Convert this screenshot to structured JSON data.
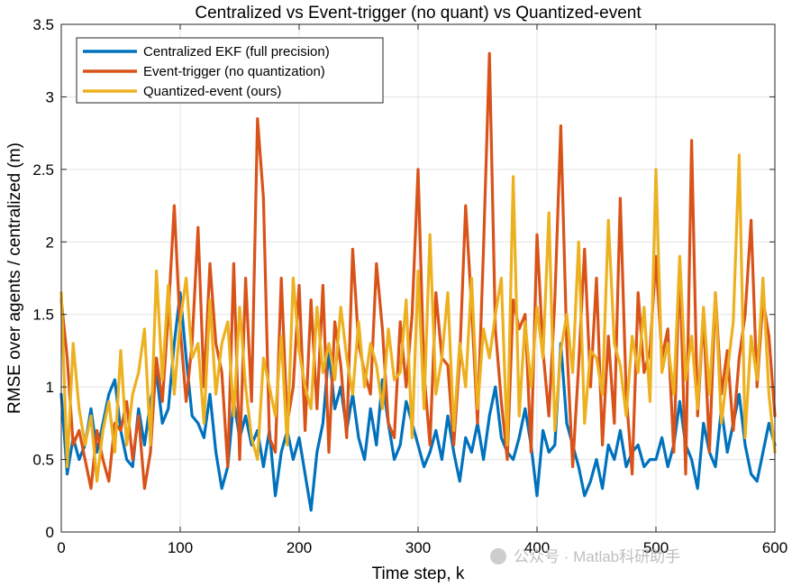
{
  "chart_data": {
    "type": "line",
    "title": "Centralized vs Event-trigger (no quant) vs Quantized-event",
    "xlabel": "Time step, k",
    "ylabel": "RMSE over agents / centralized (m)",
    "xlim": [
      0,
      600
    ],
    "ylim": [
      0,
      3.5
    ],
    "xticks": [
      0,
      100,
      200,
      300,
      400,
      500,
      600
    ],
    "yticks": [
      0,
      0.5,
      1,
      1.5,
      2,
      2.5,
      3,
      3.5
    ],
    "xtick_labels": [
      "0",
      "100",
      "200",
      "300",
      "400",
      "500",
      "600"
    ],
    "ytick_labels": [
      "0",
      "0.5",
      "1",
      "1.5",
      "2",
      "2.5",
      "3",
      "3.5"
    ],
    "grid": true,
    "legend_position": "top-left",
    "series": [
      {
        "name": "Centralized EKF (full precision)",
        "color": "#0072BD",
        "x": [
          0,
          5,
          10,
          15,
          20,
          25,
          30,
          35,
          40,
          45,
          50,
          55,
          60,
          65,
          70,
          75,
          80,
          85,
          90,
          95,
          100,
          105,
          110,
          115,
          120,
          125,
          130,
          135,
          140,
          145,
          150,
          155,
          160,
          165,
          170,
          175,
          180,
          185,
          190,
          195,
          200,
          205,
          210,
          215,
          220,
          225,
          230,
          235,
          240,
          245,
          250,
          255,
          260,
          265,
          270,
          275,
          280,
          285,
          290,
          295,
          300,
          305,
          310,
          315,
          320,
          325,
          330,
          335,
          340,
          345,
          350,
          355,
          360,
          365,
          370,
          375,
          380,
          385,
          390,
          395,
          400,
          405,
          410,
          415,
          420,
          425,
          430,
          435,
          440,
          445,
          450,
          455,
          460,
          465,
          470,
          475,
          480,
          485,
          490,
          495,
          500,
          505,
          510,
          515,
          520,
          525,
          530,
          535,
          540,
          545,
          550,
          555,
          560,
          565,
          570,
          575,
          580,
          585,
          590,
          595,
          600
        ],
        "values": [
          0.95,
          0.4,
          0.65,
          0.5,
          0.6,
          0.85,
          0.55,
          0.75,
          0.95,
          1.05,
          0.7,
          0.5,
          0.45,
          0.85,
          0.6,
          0.9,
          1.1,
          0.75,
          0.85,
          1.3,
          1.65,
          1.2,
          0.8,
          0.75,
          0.65,
          0.95,
          0.55,
          0.3,
          0.45,
          0.9,
          0.65,
          0.8,
          0.6,
          0.7,
          0.45,
          0.7,
          0.25,
          0.55,
          0.7,
          0.5,
          0.65,
          0.4,
          0.15,
          0.55,
          0.75,
          1.25,
          0.85,
          1.0,
          0.7,
          0.95,
          0.65,
          0.5,
          0.85,
          0.6,
          1.05,
          0.75,
          0.5,
          0.6,
          0.9,
          0.75,
          0.6,
          0.45,
          0.55,
          0.7,
          0.5,
          0.8,
          0.55,
          0.35,
          0.65,
          0.55,
          0.75,
          0.5,
          0.8,
          1.0,
          0.65,
          0.55,
          0.5,
          0.65,
          0.85,
          0.6,
          0.25,
          0.7,
          0.55,
          0.6,
          1.3,
          0.75,
          0.6,
          0.45,
          0.25,
          0.35,
          0.5,
          0.3,
          0.6,
          0.5,
          0.7,
          0.45,
          0.55,
          0.6,
          0.45,
          0.5,
          0.5,
          0.65,
          0.45,
          0.6,
          0.9,
          0.6,
          0.5,
          0.3,
          0.75,
          0.55,
          0.45,
          0.85,
          0.55,
          0.75,
          0.95,
          0.6,
          0.4,
          0.35,
          0.55,
          0.75,
          0.6
        ]
      },
      {
        "name": "Event-trigger (no quantization)",
        "color": "#D95319",
        "x": [
          0,
          5,
          10,
          15,
          20,
          25,
          30,
          35,
          40,
          45,
          50,
          55,
          60,
          65,
          70,
          75,
          80,
          85,
          90,
          95,
          100,
          105,
          110,
          115,
          120,
          125,
          130,
          135,
          140,
          145,
          150,
          155,
          160,
          165,
          170,
          175,
          180,
          185,
          190,
          195,
          200,
          205,
          210,
          215,
          220,
          225,
          230,
          235,
          240,
          245,
          250,
          255,
          260,
          265,
          270,
          275,
          280,
          285,
          290,
          295,
          300,
          305,
          310,
          315,
          320,
          325,
          330,
          335,
          340,
          345,
          350,
          355,
          360,
          365,
          370,
          375,
          380,
          385,
          390,
          395,
          400,
          405,
          410,
          415,
          420,
          425,
          430,
          435,
          440,
          445,
          450,
          455,
          460,
          465,
          470,
          475,
          480,
          485,
          490,
          495,
          500,
          505,
          510,
          515,
          520,
          525,
          530,
          535,
          540,
          545,
          550,
          555,
          560,
          565,
          570,
          575,
          580,
          585,
          590,
          595,
          600
        ],
        "values": [
          1.6,
          1.2,
          0.6,
          0.7,
          0.5,
          0.3,
          0.7,
          0.5,
          0.35,
          0.75,
          0.7,
          0.9,
          0.5,
          0.8,
          0.3,
          0.55,
          1.2,
          0.9,
          1.5,
          2.25,
          1.4,
          0.9,
          1.3,
          2.1,
          1.0,
          1.85,
          1.3,
          1.1,
          0.45,
          1.85,
          0.5,
          1.75,
          0.9,
          2.85,
          2.3,
          0.65,
          0.55,
          1.75,
          0.75,
          1.0,
          1.7,
          0.7,
          1.6,
          0.85,
          1.7,
          0.55,
          1.45,
          1.15,
          0.65,
          1.95,
          1.3,
          1.1,
          0.95,
          1.85,
          1.4,
          0.75,
          0.65,
          1.45,
          1.0,
          1.5,
          2.5,
          1.1,
          0.6,
          1.65,
          1.2,
          1.15,
          0.6,
          1.2,
          2.25,
          1.55,
          0.75,
          1.95,
          3.3,
          1.4,
          0.9,
          0.5,
          1.6,
          1.4,
          1.5,
          0.55,
          2.05,
          1.25,
          0.8,
          1.6,
          2.8,
          1.3,
          0.45,
          1.15,
          1.95,
          1.0,
          1.75,
          0.6,
          1.35,
          0.75,
          2.3,
          0.95,
          0.4,
          1.65,
          1.1,
          1.25,
          1.9,
          1.2,
          1.4,
          0.55,
          1.85,
          0.4,
          2.7,
          0.8,
          1.5,
          0.55,
          1.65,
          0.95,
          1.25,
          0.7,
          1.2,
          1.5,
          2.15,
          1.0,
          1.6,
          1.35,
          0.8
        ]
      },
      {
        "name": "Quantized-event (ours)",
        "color": "#EDB120",
        "x": [
          0,
          5,
          10,
          15,
          20,
          25,
          30,
          35,
          40,
          45,
          50,
          55,
          60,
          65,
          70,
          75,
          80,
          85,
          90,
          95,
          100,
          105,
          110,
          115,
          120,
          125,
          130,
          135,
          140,
          145,
          150,
          155,
          160,
          165,
          170,
          175,
          180,
          185,
          190,
          195,
          200,
          205,
          210,
          215,
          220,
          225,
          230,
          235,
          240,
          245,
          250,
          255,
          260,
          265,
          270,
          275,
          280,
          285,
          290,
          295,
          300,
          305,
          310,
          315,
          320,
          325,
          330,
          335,
          340,
          345,
          350,
          355,
          360,
          365,
          370,
          375,
          380,
          385,
          390,
          395,
          400,
          405,
          410,
          415,
          420,
          425,
          430,
          435,
          440,
          445,
          450,
          455,
          460,
          465,
          470,
          475,
          480,
          485,
          490,
          495,
          500,
          505,
          510,
          515,
          520,
          525,
          530,
          535,
          540,
          545,
          550,
          555,
          560,
          565,
          570,
          575,
          580,
          585,
          590,
          595,
          600
        ],
        "values": [
          1.65,
          0.45,
          1.3,
          0.85,
          0.6,
          0.8,
          0.35,
          0.7,
          0.9,
          0.55,
          1.25,
          0.6,
          0.95,
          1.1,
          1.4,
          0.6,
          1.8,
          1.05,
          1.7,
          0.95,
          1.45,
          1.75,
          1.2,
          1.3,
          0.75,
          1.6,
          0.95,
          1.3,
          1.45,
          0.8,
          1.55,
          1.0,
          0.65,
          0.5,
          1.2,
          1.0,
          0.8,
          1.35,
          0.6,
          1.75,
          1.25,
          1.0,
          0.85,
          1.55,
          1.1,
          1.3,
          1.05,
          1.55,
          1.2,
          0.95,
          1.45,
          1.0,
          1.3,
          1.15,
          0.85,
          1.4,
          1.05,
          1.1,
          1.6,
          0.65,
          1.8,
          0.85,
          2.05,
          0.95,
          1.2,
          1.65,
          0.7,
          1.3,
          1.0,
          1.75,
          0.85,
          1.4,
          1.2,
          1.5,
          1.75,
          0.6,
          2.45,
          0.8,
          1.45,
          1.0,
          1.55,
          1.2,
          2.2,
          0.7,
          1.25,
          1.5,
          1.1,
          2.0,
          0.75,
          1.25,
          1.2,
          0.95,
          2.15,
          1.3,
          1.15,
          0.8,
          1.35,
          1.1,
          1.55,
          0.9,
          2.5,
          1.1,
          1.3,
          0.95,
          1.9,
          1.05,
          1.35,
          0.85,
          1.55,
          0.95,
          1.65,
          0.75,
          1.1,
          1.45,
          2.6,
          0.65,
          1.35,
          1.05,
          1.75,
          0.95,
          0.55
        ]
      }
    ]
  },
  "watermark": {
    "text": "公众号 · Matlab科研助手"
  }
}
